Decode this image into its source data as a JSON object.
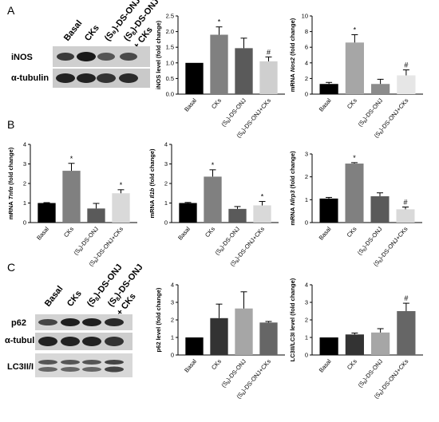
{
  "panels": [
    {
      "letter": "A"
    },
    {
      "letter": "B"
    },
    {
      "letter": "C"
    }
  ],
  "blots": [
    {
      "lanes": [
        "Basal",
        "CKs",
        "(S₈)-DS-ONJ",
        "(S₈)-DS-ONJ + CKs"
      ],
      "rows": [
        "iNOS",
        "α-tubulin"
      ]
    },
    {
      "lanes": [
        "Basal",
        "CKs",
        "(S₈)-DS-ONJ",
        "(S₈)-DS-ONJ + CKs"
      ],
      "rows": [
        "p62",
        "α-tubulin",
        "LC3II/I"
      ]
    }
  ],
  "chart_data": [
    {
      "type": "bar",
      "panel": "A",
      "categories": [
        "Basal",
        "CKs",
        "(S₈)-DS-ONJ",
        "(S₈)-DS-ONJ+CKs"
      ],
      "values": [
        1.0,
        1.9,
        1.47,
        1.05
      ],
      "errors": [
        0.0,
        0.25,
        0.32,
        0.14
      ],
      "marks": [
        "",
        "*",
        "",
        "#"
      ],
      "colors": [
        "#000000",
        "#808080",
        "#5a5a5a",
        "#cfcfcf"
      ],
      "ylabel": "iNOS level (fold change)",
      "ylim": [
        0,
        2.5
      ],
      "yticks": [
        0,
        0.5,
        1.0,
        1.5,
        2.0,
        2.5
      ],
      "ytick_labels": [
        "0.0",
        "0.5",
        "1.0",
        "1.5",
        "2.0",
        "2.5"
      ],
      "grid": false
    },
    {
      "type": "bar",
      "panel": "A",
      "categories": [
        "Basal",
        "CKs",
        "(S₈)-DS-ONJ",
        "(S₈)-DS-ONJ+CKs"
      ],
      "values": [
        1.3,
        6.6,
        1.3,
        2.4
      ],
      "errors": [
        0.2,
        1.0,
        0.6,
        0.7
      ],
      "marks": [
        "",
        "*",
        "",
        "#"
      ],
      "colors": [
        "#000000",
        "#a6a6a6",
        "#8c8c8c",
        "#e6e6e6"
      ],
      "ylabel": "mRNA Nos2 (fold change)",
      "ylim": [
        0,
        10
      ],
      "yticks": [
        0,
        2,
        4,
        6,
        8,
        10
      ],
      "ytick_labels": [
        "0",
        "2",
        "4",
        "6",
        "8",
        "10"
      ],
      "grid": false
    },
    {
      "type": "bar",
      "panel": "B",
      "categories": [
        "Basal",
        "CKs",
        "(S₈)-DS-ONJ",
        "(S₈)-DS-ONJ+CKs"
      ],
      "values": [
        1.0,
        2.65,
        0.72,
        1.5
      ],
      "errors": [
        0.02,
        0.38,
        0.26,
        0.18
      ],
      "marks": [
        "",
        "*",
        "",
        "*"
      ],
      "colors": [
        "#000000",
        "#808080",
        "#5a5a5a",
        "#d9d9d9"
      ],
      "ylabel": "mRNA Tnfα (fold change)",
      "ylim": [
        0,
        4
      ],
      "yticks": [
        0,
        1,
        2,
        3,
        4
      ],
      "ytick_labels": [
        "0",
        "1",
        "2",
        "3",
        "4"
      ],
      "grid": false
    },
    {
      "type": "bar",
      "panel": "B",
      "categories": [
        "Basal",
        "CKs",
        "(S₈)-DS-ONJ",
        "(S₈)-DS-ONJ+CKs"
      ],
      "values": [
        1.0,
        2.35,
        0.7,
        0.88
      ],
      "errors": [
        0.03,
        0.35,
        0.12,
        0.2
      ],
      "marks": [
        "",
        "*",
        "",
        "*"
      ],
      "colors": [
        "#000000",
        "#808080",
        "#5a5a5a",
        "#d9d9d9"
      ],
      "ylabel": "mRNA Il1b (fold change)",
      "ylim": [
        0,
        4
      ],
      "yticks": [
        0,
        1,
        2,
        3,
        4
      ],
      "ytick_labels": [
        "0",
        "1",
        "2",
        "3",
        "4"
      ],
      "grid": false
    },
    {
      "type": "bar",
      "panel": "B",
      "categories": [
        "Basal",
        "CKs",
        "(S₈)-DS-ONJ",
        "(S₈)-DS-ONJ+CKs"
      ],
      "values": [
        1.05,
        2.58,
        1.15,
        0.58
      ],
      "errors": [
        0.05,
        0.04,
        0.15,
        0.1
      ],
      "marks": [
        "",
        "*",
        "",
        "#"
      ],
      "colors": [
        "#000000",
        "#808080",
        "#5a5a5a",
        "#d9d9d9"
      ],
      "ylabel": "mRNA Nlrp3 (fold change)",
      "ylim": [
        0,
        3
      ],
      "yticks": [
        0,
        1,
        2,
        3
      ],
      "ytick_labels": [
        "0",
        "1",
        "2",
        "3"
      ],
      "grid": false
    },
    {
      "type": "bar",
      "panel": "C",
      "categories": [
        "Basal",
        "CKs",
        "(S₈)-DS-ONJ",
        "(S₈)-DS-ONJ+CKs"
      ],
      "values": [
        1.0,
        2.1,
        2.65,
        1.85
      ],
      "errors": [
        0.0,
        0.8,
        0.95,
        0.06
      ],
      "marks": [
        "",
        "",
        "",
        ""
      ],
      "colors": [
        "#000000",
        "#333333",
        "#a6a6a6",
        "#666666"
      ],
      "ylabel": "p62 level (fold change)",
      "ylim": [
        0,
        4
      ],
      "yticks": [
        0,
        1,
        2,
        3,
        4
      ],
      "ytick_labels": [
        "0",
        "1",
        "2",
        "3",
        "4"
      ],
      "grid": false
    },
    {
      "type": "bar",
      "panel": "C",
      "categories": [
        "Basal",
        "CKs",
        "(S₈)-DS-ONJ",
        "(S₈)-DS-ONJ+CKs"
      ],
      "values": [
        1.0,
        1.17,
        1.28,
        2.5
      ],
      "errors": [
        0.0,
        0.08,
        0.22,
        0.45
      ],
      "marks": [
        "",
        "",
        "",
        "#"
      ],
      "colors": [
        "#000000",
        "#333333",
        "#a6a6a6",
        "#666666"
      ],
      "ylabel": "LC3II/LC3I level (fold change)",
      "ylim": [
        0,
        4
      ],
      "yticks": [
        0,
        1,
        2,
        3,
        4
      ],
      "ytick_labels": [
        "0",
        "1",
        "2",
        "3",
        "4"
      ],
      "grid": false
    }
  ]
}
